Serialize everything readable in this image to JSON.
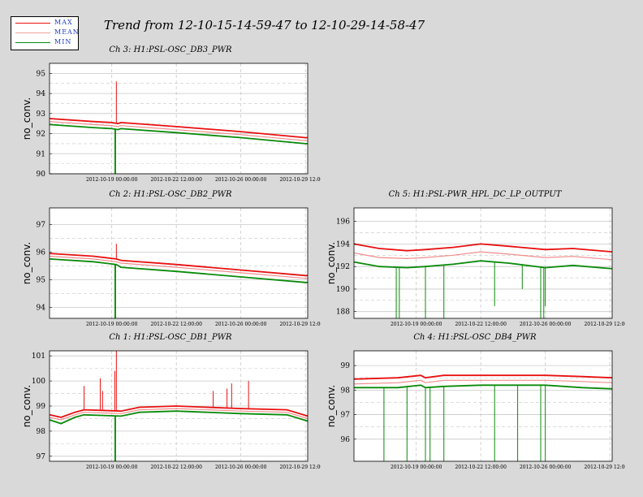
{
  "page": {
    "title": "Trend from 12-10-15-14-59-47 to 12-10-29-14-58-47"
  },
  "legend": {
    "items": [
      {
        "label": "MAX",
        "color": "#e81010"
      },
      {
        "label": "MEAN",
        "color": "#f0a0a0"
      },
      {
        "label": "MIN",
        "color": "#0a8a0a"
      }
    ]
  },
  "colors": {
    "max": "#e81010",
    "mean": "#f08c8c",
    "min": "#0a8a0a",
    "background": "#d9d9d9",
    "plot_bg": "#ffffff",
    "grid": "#c8c8c8"
  },
  "x_axis": {
    "start": "2012-10-15 14:59:47",
    "end": "2012-10-29 14:58:47",
    "tick_labels": [
      "2012-10-19 00:00:00",
      "2012-10-22 12:00:00",
      "2012-10-26 00:00:00",
      "2012-10-29 12:00:00"
    ]
  },
  "chart_data": [
    {
      "type": "line",
      "title": "Ch 3: H1:PSL-OSC_DB3_PWR",
      "ylabel": "no_conv.",
      "ylim": [
        90,
        95.5
      ],
      "yticks": [
        90,
        91,
        92,
        93,
        94,
        95
      ],
      "grid": true,
      "series": [
        {
          "name": "MAX",
          "points": [
            [
              "2012-10-15 15:00",
              92.75
            ],
            [
              "2012-10-18 00:00",
              92.6
            ],
            [
              "2012-10-19 00:00",
              92.55
            ],
            [
              "2012-10-19 08:00",
              92.5
            ],
            [
              "2012-10-19 12:00",
              92.55
            ],
            [
              "2012-10-22 12:00",
              92.35
            ],
            [
              "2012-10-26 00:00",
              92.1
            ],
            [
              "2012-10-29 12:00",
              91.8
            ],
            [
              "2012-10-29 15:00",
              91.8
            ]
          ]
        },
        {
          "name": "MEAN",
          "points": [
            [
              "2012-10-15 15:00",
              92.6
            ],
            [
              "2012-10-18 00:00",
              92.45
            ],
            [
              "2012-10-19 00:00",
              92.4
            ],
            [
              "2012-10-19 08:00",
              92.35
            ],
            [
              "2012-10-19 12:00",
              92.4
            ],
            [
              "2012-10-22 12:00",
              92.2
            ],
            [
              "2012-10-26 00:00",
              91.95
            ],
            [
              "2012-10-29 12:00",
              91.65
            ],
            [
              "2012-10-29 15:00",
              91.65
            ]
          ]
        },
        {
          "name": "MIN",
          "points": [
            [
              "2012-10-15 15:00",
              92.45
            ],
            [
              "2012-10-18 00:00",
              92.3
            ],
            [
              "2012-10-19 00:00",
              92.25
            ],
            [
              "2012-10-19 08:00",
              92.2
            ],
            [
              "2012-10-19 12:00",
              92.25
            ],
            [
              "2012-10-22 12:00",
              92.05
            ],
            [
              "2012-10-26 00:00",
              91.8
            ],
            [
              "2012-10-29 12:00",
              91.5
            ],
            [
              "2012-10-29 15:00",
              91.5
            ]
          ]
        }
      ],
      "spikes": [
        {
          "name": "MAX",
          "x": "2012-10-19 06:00",
          "value": 94.6
        },
        {
          "name": "MIN",
          "x": "2012-10-19 04:00",
          "value": 90.0
        },
        {
          "name": "MIN",
          "x": "2012-10-19 05:00",
          "value": 90.0
        }
      ]
    },
    {
      "type": "line",
      "title": "Ch 2: H1:PSL-OSC_DB2_PWR",
      "ylabel": "no_conv.",
      "ylim": [
        93.6,
        97.6
      ],
      "yticks": [
        94,
        95,
        96,
        97
      ],
      "grid": true,
      "series": [
        {
          "name": "MAX",
          "points": [
            [
              "2012-10-15 15:00",
              95.95
            ],
            [
              "2012-10-18 00:00",
              95.85
            ],
            [
              "2012-10-19 06:00",
              95.75
            ],
            [
              "2012-10-19 12:00",
              95.7
            ],
            [
              "2012-10-22 12:00",
              95.55
            ],
            [
              "2012-10-26 00:00",
              95.35
            ],
            [
              "2012-10-29 12:00",
              95.15
            ],
            [
              "2012-10-29 15:00",
              95.15
            ]
          ]
        },
        {
          "name": "MEAN",
          "points": [
            [
              "2012-10-15 15:00",
              95.85
            ],
            [
              "2012-10-18 00:00",
              95.75
            ],
            [
              "2012-10-19 06:00",
              95.65
            ],
            [
              "2012-10-19 12:00",
              95.6
            ],
            [
              "2012-10-22 12:00",
              95.45
            ],
            [
              "2012-10-26 00:00",
              95.25
            ],
            [
              "2012-10-29 12:00",
              95.05
            ],
            [
              "2012-10-29 15:00",
              95.05
            ]
          ]
        },
        {
          "name": "MIN",
          "points": [
            [
              "2012-10-15 15:00",
              95.75
            ],
            [
              "2012-10-18 00:00",
              95.65
            ],
            [
              "2012-10-19 06:00",
              95.55
            ],
            [
              "2012-10-19 12:00",
              95.45
            ],
            [
              "2012-10-22 12:00",
              95.3
            ],
            [
              "2012-10-26 00:00",
              95.1
            ],
            [
              "2012-10-29 12:00",
              94.9
            ],
            [
              "2012-10-29 15:00",
              94.9
            ]
          ]
        }
      ],
      "spikes": [
        {
          "name": "MAX",
          "x": "2012-10-19 06:00",
          "value": 96.3
        },
        {
          "name": "MIN",
          "x": "2012-10-19 04:00",
          "value": 93.6
        },
        {
          "name": "MIN",
          "x": "2012-10-19 05:00",
          "value": 93.6
        }
      ]
    },
    {
      "type": "line",
      "title": "Ch 5: H1:PSL-PWR_HPL_DC_LP_OUTPUT",
      "ylabel": "no_conv.",
      "ylim": [
        187.4,
        197.2
      ],
      "yticks": [
        188,
        190,
        192,
        194,
        196
      ],
      "grid": true,
      "series": [
        {
          "name": "MAX",
          "points": [
            [
              "2012-10-15 15:00",
              194.0
            ],
            [
              "2012-10-17 00:00",
              193.6
            ],
            [
              "2012-10-18 12:00",
              193.4
            ],
            [
              "2012-10-19 12:00",
              193.5
            ],
            [
              "2012-10-21 00:00",
              193.7
            ],
            [
              "2012-10-22 12:00",
              194.0
            ],
            [
              "2012-10-24 00:00",
              193.8
            ],
            [
              "2012-10-26 00:00",
              193.5
            ],
            [
              "2012-10-27 12:00",
              193.6
            ],
            [
              "2012-10-29 15:00",
              193.3
            ]
          ]
        },
        {
          "name": "MEAN",
          "points": [
            [
              "2012-10-15 15:00",
              193.2
            ],
            [
              "2012-10-17 00:00",
              192.8
            ],
            [
              "2012-10-18 12:00",
              192.7
            ],
            [
              "2012-10-19 12:00",
              192.8
            ],
            [
              "2012-10-21 00:00",
              193.0
            ],
            [
              "2012-10-22 12:00",
              193.3
            ],
            [
              "2012-10-24 00:00",
              193.1
            ],
            [
              "2012-10-26 00:00",
              192.8
            ],
            [
              "2012-10-27 12:00",
              192.9
            ],
            [
              "2012-10-29 15:00",
              192.6
            ]
          ]
        },
        {
          "name": "MIN",
          "points": [
            [
              "2012-10-15 15:00",
              192.4
            ],
            [
              "2012-10-17 00:00",
              192.0
            ],
            [
              "2012-10-18 12:00",
              191.9
            ],
            [
              "2012-10-19 12:00",
              192.0
            ],
            [
              "2012-10-21 00:00",
              192.2
            ],
            [
              "2012-10-22 12:00",
              192.5
            ],
            [
              "2012-10-24 00:00",
              192.3
            ],
            [
              "2012-10-26 00:00",
              191.9
            ],
            [
              "2012-10-27 12:00",
              192.1
            ],
            [
              "2012-10-29 15:00",
              191.8
            ]
          ]
        }
      ],
      "spikes": [
        {
          "name": "MIN",
          "x": "2012-10-17 22:00",
          "value": 187.4
        },
        {
          "name": "MIN",
          "x": "2012-10-18 02:00",
          "value": 187.4
        },
        {
          "name": "MIN",
          "x": "2012-10-19 12:00",
          "value": 187.4
        },
        {
          "name": "MIN",
          "x": "2012-10-20 12:00",
          "value": 187.4
        },
        {
          "name": "MIN",
          "x": "2012-10-23 06:00",
          "value": 188.5
        },
        {
          "name": "MIN",
          "x": "2012-10-24 18:00",
          "value": 190.0
        },
        {
          "name": "MIN",
          "x": "2012-10-25 18:00",
          "value": 187.4
        },
        {
          "name": "MIN",
          "x": "2012-10-25 22:00",
          "value": 187.4
        },
        {
          "name": "MIN",
          "x": "2012-10-26 00:00",
          "value": 188.5
        }
      ]
    },
    {
      "type": "line",
      "title": "Ch 1: H1:PSL-OSC_DB1_PWR",
      "ylabel": "no_conv.",
      "ylim": [
        96.8,
        101.2
      ],
      "yticks": [
        97,
        98,
        99,
        100,
        101
      ],
      "grid": true,
      "series": [
        {
          "name": "MAX",
          "points": [
            [
              "2012-10-15 15:00",
              98.65
            ],
            [
              "2012-10-16 06:00",
              98.55
            ],
            [
              "2012-10-17 00:00",
              98.75
            ],
            [
              "2012-10-17 12:00",
              98.85
            ],
            [
              "2012-10-19 12:00",
              98.8
            ],
            [
              "2012-10-20 12:00",
              98.95
            ],
            [
              "2012-10-22 12:00",
              99.0
            ],
            [
              "2012-10-26 00:00",
              98.9
            ],
            [
              "2012-10-28 12:00",
              98.85
            ],
            [
              "2012-10-29 15:00",
              98.6
            ]
          ]
        },
        {
          "name": "MEAN",
          "points": [
            [
              "2012-10-15 15:00",
              98.55
            ],
            [
              "2012-10-16 06:00",
              98.45
            ],
            [
              "2012-10-17 00:00",
              98.65
            ],
            [
              "2012-10-17 12:00",
              98.75
            ],
            [
              "2012-10-19 12:00",
              98.7
            ],
            [
              "2012-10-20 12:00",
              98.85
            ],
            [
              "2012-10-22 12:00",
              98.9
            ],
            [
              "2012-10-26 00:00",
              98.8
            ],
            [
              "2012-10-28 12:00",
              98.75
            ],
            [
              "2012-10-29 15:00",
              98.5
            ]
          ]
        },
        {
          "name": "MIN",
          "points": [
            [
              "2012-10-15 15:00",
              98.45
            ],
            [
              "2012-10-16 06:00",
              98.3
            ],
            [
              "2012-10-17 00:00",
              98.55
            ],
            [
              "2012-10-17 12:00",
              98.65
            ],
            [
              "2012-10-19 12:00",
              98.6
            ],
            [
              "2012-10-20 12:00",
              98.75
            ],
            [
              "2012-10-22 12:00",
              98.8
            ],
            [
              "2012-10-26 00:00",
              98.7
            ],
            [
              "2012-10-28 12:00",
              98.65
            ],
            [
              "2012-10-29 15:00",
              98.4
            ]
          ]
        }
      ],
      "spikes": [
        {
          "name": "MAX",
          "x": "2012-10-17 12:00",
          "value": 99.8
        },
        {
          "name": "MAX",
          "x": "2012-10-18 09:00",
          "value": 100.1
        },
        {
          "name": "MAX",
          "x": "2012-10-18 12:00",
          "value": 99.6
        },
        {
          "name": "MAX",
          "x": "2012-10-19 04:00",
          "value": 100.4
        },
        {
          "name": "MAX",
          "x": "2012-10-19 06:00",
          "value": 101.2
        },
        {
          "name": "MAX",
          "x": "2012-10-24 12:00",
          "value": 99.6
        },
        {
          "name": "MAX",
          "x": "2012-10-25 06:00",
          "value": 99.7
        },
        {
          "name": "MAX",
          "x": "2012-10-25 12:00",
          "value": 99.9
        },
        {
          "name": "MAX",
          "x": "2012-10-26 10:00",
          "value": 100.0
        },
        {
          "name": "MIN",
          "x": "2012-10-19 04:00",
          "value": 96.8
        },
        {
          "name": "MIN",
          "x": "2012-10-19 05:00",
          "value": 96.8
        }
      ]
    },
    {
      "type": "line",
      "title": "Ch 4: H1:PSL-OSC_DB4_PWR",
      "ylabel": "no_conv.",
      "ylim": [
        95.1,
        99.6
      ],
      "yticks": [
        96,
        97,
        98,
        99
      ],
      "grid": true,
      "series": [
        {
          "name": "MAX",
          "points": [
            [
              "2012-10-15 15:00",
              98.45
            ],
            [
              "2012-10-18 00:00",
              98.5
            ],
            [
              "2012-10-19 06:00",
              98.6
            ],
            [
              "2012-10-19 12:00",
              98.5
            ],
            [
              "2012-10-20 12:00",
              98.6
            ],
            [
              "2012-10-22 12:00",
              98.6
            ],
            [
              "2012-10-26 00:00",
              98.6
            ],
            [
              "2012-10-28 00:00",
              98.55
            ],
            [
              "2012-10-29 15:00",
              98.5
            ]
          ]
        },
        {
          "name": "MEAN",
          "points": [
            [
              "2012-10-15 15:00",
              98.25
            ],
            [
              "2012-10-18 00:00",
              98.3
            ],
            [
              "2012-10-19 06:00",
              98.4
            ],
            [
              "2012-10-19 12:00",
              98.3
            ],
            [
              "2012-10-20 12:00",
              98.4
            ],
            [
              "2012-10-22 12:00",
              98.4
            ],
            [
              "2012-10-26 00:00",
              98.4
            ],
            [
              "2012-10-28 00:00",
              98.35
            ],
            [
              "2012-10-29 15:00",
              98.3
            ]
          ]
        },
        {
          "name": "MIN",
          "points": [
            [
              "2012-10-15 15:00",
              98.1
            ],
            [
              "2012-10-18 00:00",
              98.1
            ],
            [
              "2012-10-19 06:00",
              98.2
            ],
            [
              "2012-10-19 12:00",
              98.1
            ],
            [
              "2012-10-20 12:00",
              98.15
            ],
            [
              "2012-10-22 12:00",
              98.2
            ],
            [
              "2012-10-26 00:00",
              98.2
            ],
            [
              "2012-10-28 00:00",
              98.1
            ],
            [
              "2012-10-29 15:00",
              98.05
            ]
          ]
        }
      ],
      "spikes": [
        {
          "name": "MIN",
          "x": "2012-10-17 06:00",
          "value": 95.1
        },
        {
          "name": "MIN",
          "x": "2012-10-18 12:00",
          "value": 95.1
        },
        {
          "name": "MIN",
          "x": "2012-10-19 12:00",
          "value": 95.1
        },
        {
          "name": "MIN",
          "x": "2012-10-19 18:00",
          "value": 95.1
        },
        {
          "name": "MIN",
          "x": "2012-10-20 12:00",
          "value": 95.1
        },
        {
          "name": "MIN",
          "x": "2012-10-23 06:00",
          "value": 95.1
        },
        {
          "name": "MIN",
          "x": "2012-10-24 12:00",
          "value": 95.1
        },
        {
          "name": "MIN",
          "x": "2012-10-25 18:00",
          "value": 95.1
        },
        {
          "name": "MIN",
          "x": "2012-10-26 00:00",
          "value": 95.1
        }
      ]
    }
  ]
}
